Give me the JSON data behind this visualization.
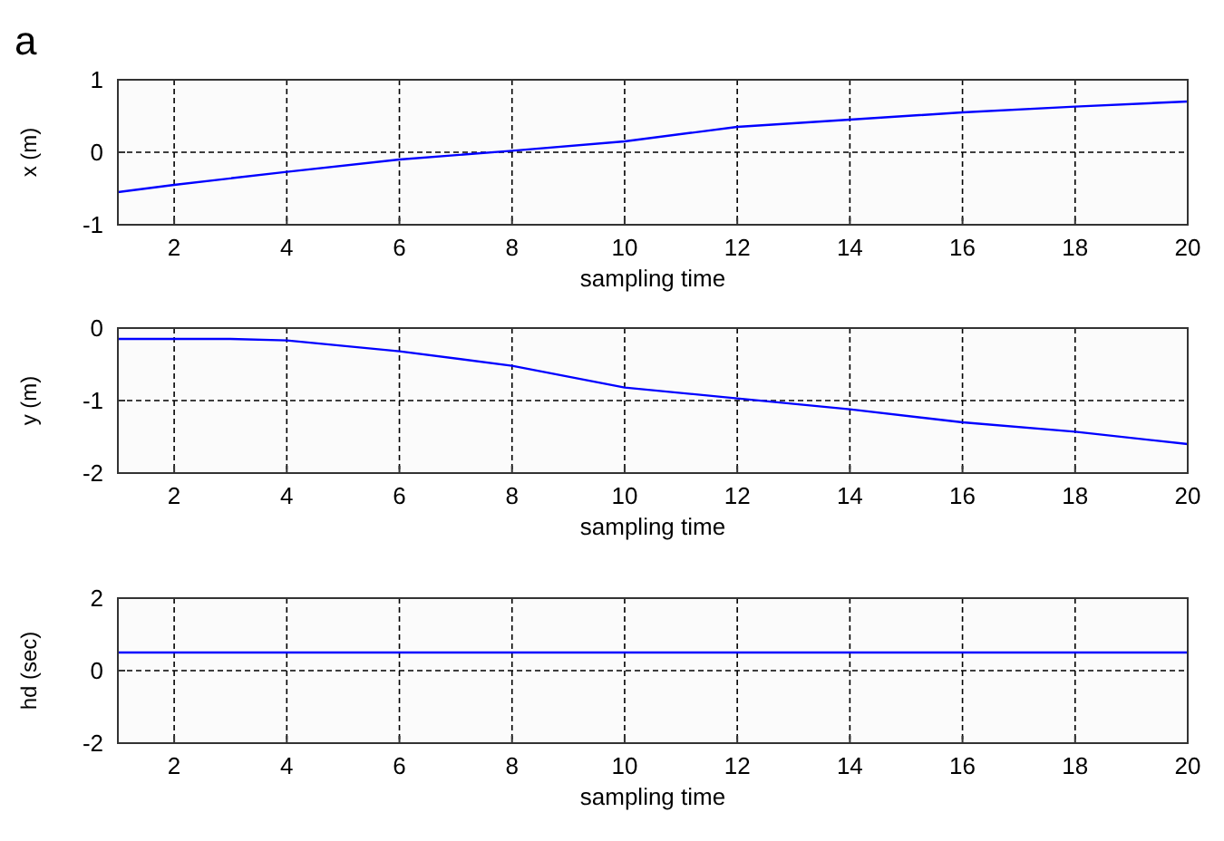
{
  "chart_data": [
    {
      "type": "line",
      "title": "a",
      "xlabel": "sampling time",
      "ylabel": "x (m)",
      "xlim": [
        1,
        20
      ],
      "xticks": [
        2,
        4,
        6,
        8,
        10,
        12,
        14,
        16,
        18,
        20
      ],
      "ylim": [
        -1,
        1
      ],
      "yticks": [
        -1,
        0,
        1
      ],
      "grid": true,
      "line_style": "solid",
      "marker": "none",
      "series": [
        {
          "color": "#0000ff",
          "x": [
            1,
            2,
            4,
            6,
            8,
            10,
            12,
            14,
            16,
            18,
            20
          ],
          "values": [
            -0.55,
            -0.45,
            -0.27,
            -0.1,
            0.02,
            0.15,
            0.35,
            0.45,
            0.55,
            0.63,
            0.7
          ]
        }
      ]
    },
    {
      "type": "line",
      "xlabel": "sampling time",
      "ylabel": "y (m)",
      "xlim": [
        1,
        20
      ],
      "xticks": [
        2,
        4,
        6,
        8,
        10,
        12,
        14,
        16,
        18,
        20
      ],
      "ylim": [
        -2,
        0
      ],
      "yticks": [
        -2,
        -1,
        0
      ],
      "grid": true,
      "line_style": "solid",
      "marker": "none",
      "series": [
        {
          "color": "#0000ff",
          "x": [
            1,
            3,
            4,
            6,
            8,
            10,
            12,
            14,
            16,
            18,
            20
          ],
          "values": [
            -0.15,
            -0.15,
            -0.17,
            -0.32,
            -0.52,
            -0.82,
            -0.97,
            -1.12,
            -1.3,
            -1.43,
            -1.6
          ]
        }
      ]
    },
    {
      "type": "line",
      "xlabel": "sampling time",
      "ylabel": "hd (sec)",
      "xlim": [
        1,
        20
      ],
      "xticks": [
        2,
        4,
        6,
        8,
        10,
        12,
        14,
        16,
        18,
        20
      ],
      "ylim": [
        -2,
        2
      ],
      "yticks": [
        -2,
        0,
        2
      ],
      "grid": true,
      "line_style": "solid",
      "marker": "none",
      "series": [
        {
          "color": "#0000ff",
          "x": [
            1,
            20
          ],
          "values": [
            0.5,
            0.5
          ]
        }
      ]
    }
  ]
}
